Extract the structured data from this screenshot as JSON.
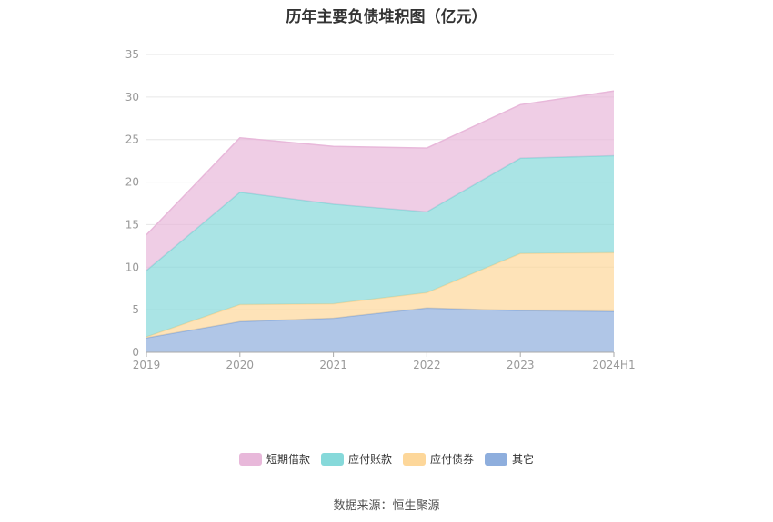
{
  "chart_data": {
    "type": "area",
    "stacked": true,
    "title": "历年主要负债堆积图（亿元）",
    "categories": [
      "2019",
      "2020",
      "2021",
      "2022",
      "2023",
      "2024H1"
    ],
    "ylim": [
      0,
      35
    ],
    "yticks": [
      0,
      5,
      10,
      15,
      20,
      25,
      30,
      35
    ],
    "grid": true,
    "legend_position": "bottom",
    "series": [
      {
        "name": "其它",
        "color": "#8eaedd",
        "values": [
          1.7,
          3.6,
          4.0,
          5.2,
          4.9,
          4.8
        ]
      },
      {
        "name": "应付债券",
        "color": "#fdd79a",
        "values": [
          0.1,
          2.0,
          1.7,
          1.8,
          6.7,
          6.9
        ]
      },
      {
        "name": "应付账款",
        "color": "#86d9da",
        "values": [
          7.8,
          13.2,
          11.7,
          9.5,
          11.2,
          11.4
        ]
      },
      {
        "name": "短期借款",
        "color": "#e8b8da",
        "values": [
          4.2,
          6.4,
          6.8,
          7.5,
          6.3,
          7.6
        ]
      }
    ],
    "legend_order": [
      "短期借款",
      "应付账款",
      "应付债券",
      "其它"
    ],
    "source": "数据来源：恒生聚源"
  }
}
